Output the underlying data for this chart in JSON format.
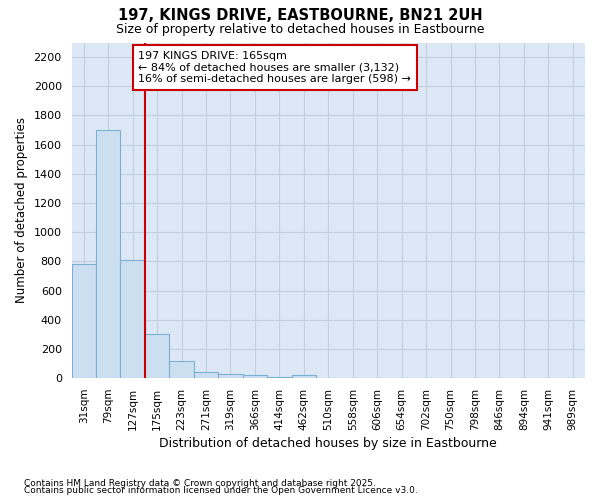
{
  "title1": "197, KINGS DRIVE, EASTBOURNE, BN21 2UH",
  "title2": "Size of property relative to detached houses in Eastbourne",
  "xlabel": "Distribution of detached houses by size in Eastbourne",
  "ylabel": "Number of detached properties",
  "categories": [
    "31sqm",
    "79sqm",
    "127sqm",
    "175sqm",
    "223sqm",
    "271sqm",
    "319sqm",
    "366sqm",
    "414sqm",
    "462sqm",
    "510sqm",
    "558sqm",
    "606sqm",
    "654sqm",
    "702sqm",
    "750sqm",
    "798sqm",
    "846sqm",
    "894sqm",
    "941sqm",
    "989sqm"
  ],
  "values": [
    780,
    1700,
    810,
    300,
    115,
    45,
    30,
    25,
    5,
    20,
    0,
    0,
    0,
    0,
    0,
    0,
    0,
    0,
    0,
    0,
    0
  ],
  "ylim": [
    0,
    2300
  ],
  "yticks": [
    0,
    200,
    400,
    600,
    800,
    1000,
    1200,
    1400,
    1600,
    1800,
    2000,
    2200
  ],
  "bar_color": "#ccdff0",
  "bar_edge_color": "#7ab0d4",
  "red_line_x": 3,
  "annotation_text": "197 KINGS DRIVE: 165sqm\n← 84% of detached houses are smaller (3,132)\n16% of semi-detached houses are larger (598) →",
  "annotation_box_color": "#ffffff",
  "annotation_box_edge_color": "#cc0000",
  "grid_color": "#c0d0e0",
  "bg_color": "#dce8f5",
  "footer1": "Contains HM Land Registry data © Crown copyright and database right 2025.",
  "footer2": "Contains public sector information licensed under the Open Government Licence v3.0."
}
